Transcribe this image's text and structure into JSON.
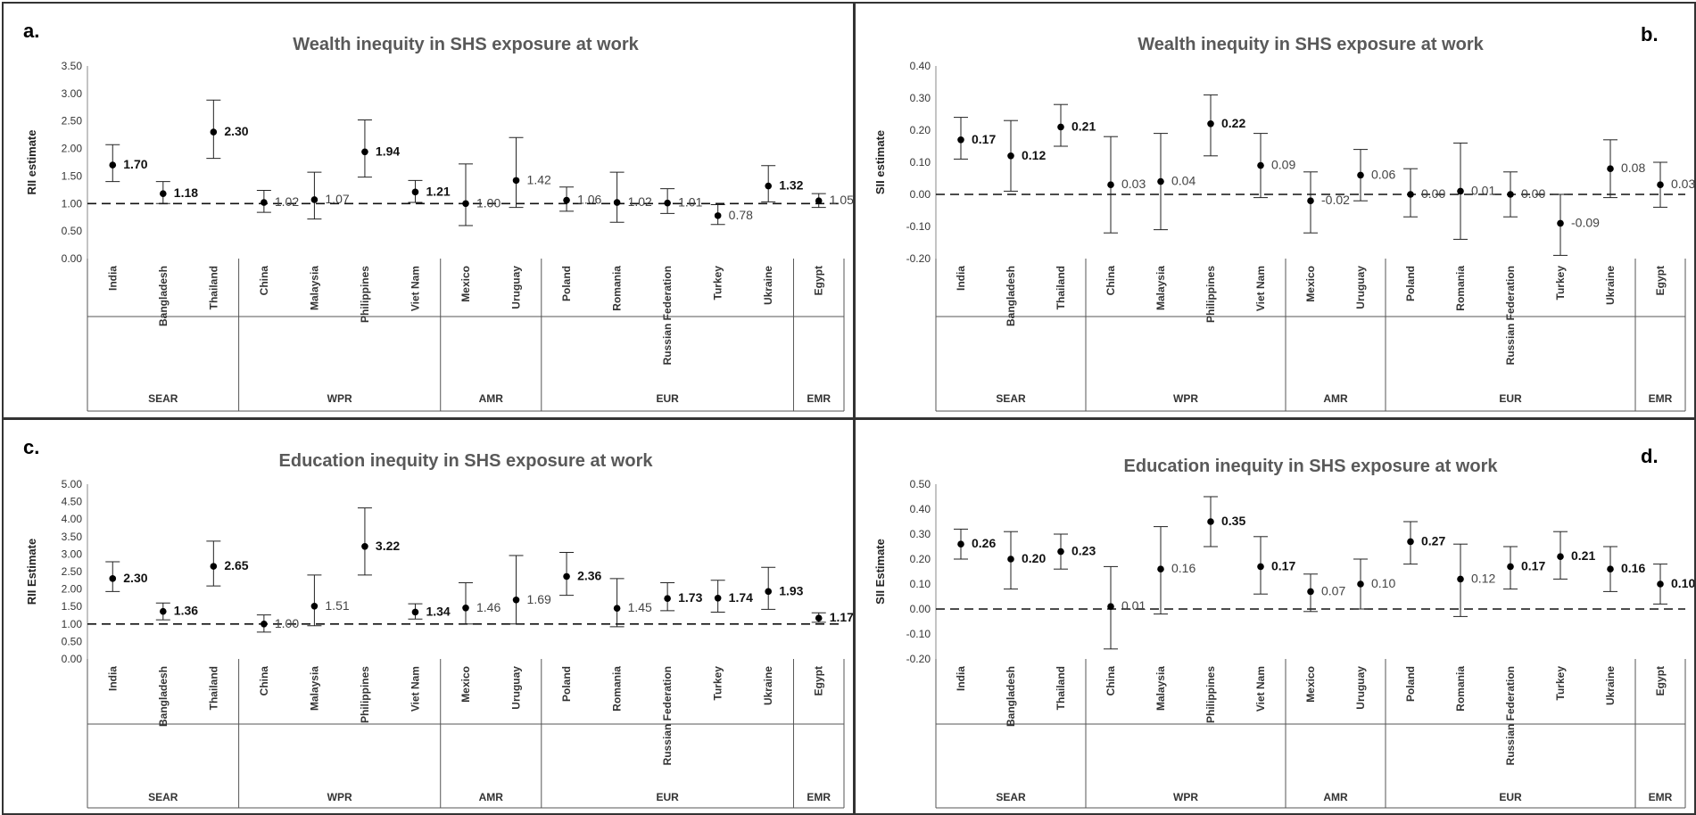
{
  "chart_data": [
    {
      "panel_label": "a.",
      "type": "scatter",
      "title": "Wealth inequity in SHS exposure at work",
      "ylabel": "RII estimate",
      "ylim": [
        0,
        3.5
      ],
      "yticks": [
        "0.00",
        "0.50",
        "1.00",
        "1.50",
        "2.00",
        "2.50",
        "3.00",
        "3.50"
      ],
      "reference_line": 1.0,
      "categories": [
        "India",
        "Bangladesh",
        "Thailand",
        "China",
        "Malaysia",
        "Philippines",
        "Viet Nam",
        "Mexico",
        "Uruguay",
        "Poland",
        "Romania",
        "Russian Federation",
        "Turkey",
        "Ukraine",
        "Egypt"
      ],
      "values": [
        1.7,
        1.18,
        2.3,
        1.02,
        1.07,
        1.94,
        1.21,
        1.0,
        1.42,
        1.06,
        1.02,
        1.01,
        0.78,
        1.32,
        1.05
      ],
      "lower": [
        1.4,
        1.0,
        1.82,
        0.84,
        0.72,
        1.48,
        1.02,
        0.6,
        0.93,
        0.86,
        0.66,
        0.82,
        0.62,
        1.03,
        0.93
      ],
      "upper": [
        2.07,
        1.4,
        2.88,
        1.24,
        1.57,
        2.52,
        1.42,
        1.72,
        2.2,
        1.3,
        1.57,
        1.27,
        0.98,
        1.69,
        1.18
      ],
      "data_labels": [
        "1.70",
        "1.18",
        "2.30",
        "1.02",
        "1.07",
        "1.94",
        "1.21",
        "1.00",
        "1.42",
        "1.06",
        "1.02",
        "1.01",
        "0.78",
        "1.32",
        "1.05"
      ],
      "label_bold": [
        true,
        true,
        true,
        false,
        false,
        true,
        true,
        false,
        false,
        false,
        false,
        false,
        false,
        true,
        false
      ],
      "groups": [
        {
          "name": "SEAR",
          "count": 3
        },
        {
          "name": "WPR",
          "count": 4
        },
        {
          "name": "AMR",
          "count": 2
        },
        {
          "name": "EUR",
          "count": 5
        },
        {
          "name": "EMR",
          "count": 1
        }
      ]
    },
    {
      "panel_label": "b.",
      "type": "scatter",
      "title": "Wealth inequity in SHS exposure at work",
      "ylabel": "SII estimate",
      "ylim": [
        -0.2,
        0.4
      ],
      "yticks": [
        "-0.20",
        "-0.10",
        "0.00",
        "0.10",
        "0.20",
        "0.30",
        "0.40"
      ],
      "reference_line": 0.0,
      "categories": [
        "India",
        "Bangladesh",
        "Thailand",
        "China",
        "Malaysia",
        "Philippines",
        "Viet Nam",
        "Mexico",
        "Uruguay",
        "Poland",
        "Romania",
        "Russian Federation",
        "Turkey",
        "Ukraine",
        "Egypt"
      ],
      "values": [
        0.17,
        0.12,
        0.21,
        0.03,
        0.04,
        0.22,
        0.09,
        -0.02,
        0.06,
        0.0,
        0.01,
        0.0,
        -0.09,
        0.08,
        0.03
      ],
      "lower": [
        0.11,
        0.01,
        0.15,
        -0.12,
        -0.11,
        0.12,
        -0.01,
        -0.12,
        -0.02,
        -0.07,
        -0.14,
        -0.07,
        -0.19,
        -0.01,
        -0.04
      ],
      "upper": [
        0.24,
        0.23,
        0.28,
        0.18,
        0.19,
        0.31,
        0.19,
        0.07,
        0.14,
        0.08,
        0.16,
        0.07,
        0.0,
        0.17,
        0.1
      ],
      "data_labels": [
        "0.17",
        "0.12",
        "0.21",
        "0.03",
        "0.04",
        "0.22",
        "0.09",
        "-0.02",
        "0.06",
        "0.00",
        "0.01",
        "0.00",
        "-0.09",
        "0.08",
        "0.03"
      ],
      "label_bold": [
        true,
        true,
        true,
        false,
        false,
        true,
        false,
        false,
        false,
        false,
        false,
        false,
        false,
        false,
        false
      ],
      "groups": [
        {
          "name": "SEAR",
          "count": 3
        },
        {
          "name": "WPR",
          "count": 4
        },
        {
          "name": "AMR",
          "count": 2
        },
        {
          "name": "EUR",
          "count": 5
        },
        {
          "name": "EMR",
          "count": 1
        }
      ]
    },
    {
      "panel_label": "c.",
      "type": "scatter",
      "title": "Education inequity in SHS exposure at work",
      "ylabel": "RII Estimate",
      "ylim": [
        0,
        5
      ],
      "yticks": [
        "0.00",
        "0.50",
        "1.00",
        "1.50",
        "2.00",
        "2.50",
        "3.00",
        "3.50",
        "4.00",
        "4.50",
        "5.00"
      ],
      "reference_line": 1.0,
      "categories": [
        "India",
        "Bangladesh",
        "Thailand",
        "China",
        "Malaysia",
        "Philippines",
        "Viet Nam",
        "Mexico",
        "Uruguay",
        "Poland",
        "Romania",
        "Russian Federation",
        "Turkey",
        "Ukraine",
        "Egypt"
      ],
      "values": [
        2.3,
        1.36,
        2.65,
        1.0,
        1.51,
        3.22,
        1.34,
        1.46,
        1.69,
        2.36,
        1.45,
        1.73,
        1.74,
        1.93,
        1.17
      ],
      "lower": [
        1.93,
        1.12,
        2.09,
        0.77,
        0.95,
        2.4,
        1.14,
        1.0,
        1.0,
        1.82,
        0.92,
        1.38,
        1.34,
        1.42,
        1.05
      ],
      "upper": [
        2.78,
        1.6,
        3.37,
        1.26,
        2.4,
        4.32,
        1.58,
        2.18,
        2.96,
        3.05,
        2.3,
        2.18,
        2.25,
        2.62,
        1.32
      ],
      "data_labels": [
        "2.30",
        "1.36",
        "2.65",
        "1.00",
        "1.51",
        "3.22",
        "1.34",
        "1.46",
        "1.69",
        "2.36",
        "1.45",
        "1.73",
        "1.74",
        "1.93",
        "1.17"
      ],
      "label_bold": [
        true,
        true,
        true,
        false,
        false,
        true,
        true,
        false,
        false,
        true,
        false,
        true,
        true,
        true,
        true
      ],
      "groups": [
        {
          "name": "SEAR",
          "count": 3
        },
        {
          "name": "WPR",
          "count": 4
        },
        {
          "name": "AMR",
          "count": 2
        },
        {
          "name": "EUR",
          "count": 5
        },
        {
          "name": "EMR",
          "count": 1
        }
      ]
    },
    {
      "panel_label": "d.",
      "type": "scatter",
      "title": "Education inequity in SHS exposure at work",
      "ylabel": "SII Estimate",
      "ylim": [
        -0.2,
        0.5
      ],
      "yticks": [
        "-0.20",
        "-0.10",
        "0.00",
        "0.10",
        "0.20",
        "0.30",
        "0.40",
        "0.50"
      ],
      "reference_line": 0.0,
      "categories": [
        "India",
        "Bangladesh",
        "Thailand",
        "China",
        "Malaysia",
        "Philippines",
        "Viet Nam",
        "Mexico",
        "Uruguay",
        "Poland",
        "Romania",
        "Russian Federation",
        "Turkey",
        "Ukraine",
        "Egypt"
      ],
      "values": [
        0.26,
        0.2,
        0.23,
        0.01,
        0.16,
        0.35,
        0.17,
        0.07,
        0.1,
        0.27,
        0.12,
        0.17,
        0.21,
        0.16,
        0.1
      ],
      "lower": [
        0.2,
        0.08,
        0.16,
        -0.16,
        -0.02,
        0.25,
        0.06,
        -0.01,
        0.0,
        0.18,
        -0.03,
        0.08,
        0.12,
        0.07,
        0.02
      ],
      "upper": [
        0.32,
        0.31,
        0.3,
        0.17,
        0.33,
        0.45,
        0.29,
        0.14,
        0.2,
        0.35,
        0.26,
        0.25,
        0.31,
        0.25,
        0.18
      ],
      "data_labels": [
        "0.26",
        "0.20",
        "0.23",
        "0.01",
        "0.16",
        "0.35",
        "0.17",
        "0.07",
        "0.10",
        "0.27",
        "0.12",
        "0.17",
        "0.21",
        "0.16",
        "0.10"
      ],
      "label_bold": [
        true,
        true,
        true,
        false,
        false,
        true,
        true,
        false,
        false,
        true,
        false,
        true,
        true,
        true,
        true
      ],
      "groups": [
        {
          "name": "SEAR",
          "count": 3
        },
        {
          "name": "WPR",
          "count": 4
        },
        {
          "name": "AMR",
          "count": 2
        },
        {
          "name": "EUR",
          "count": 5
        },
        {
          "name": "EMR",
          "count": 1
        }
      ]
    }
  ]
}
